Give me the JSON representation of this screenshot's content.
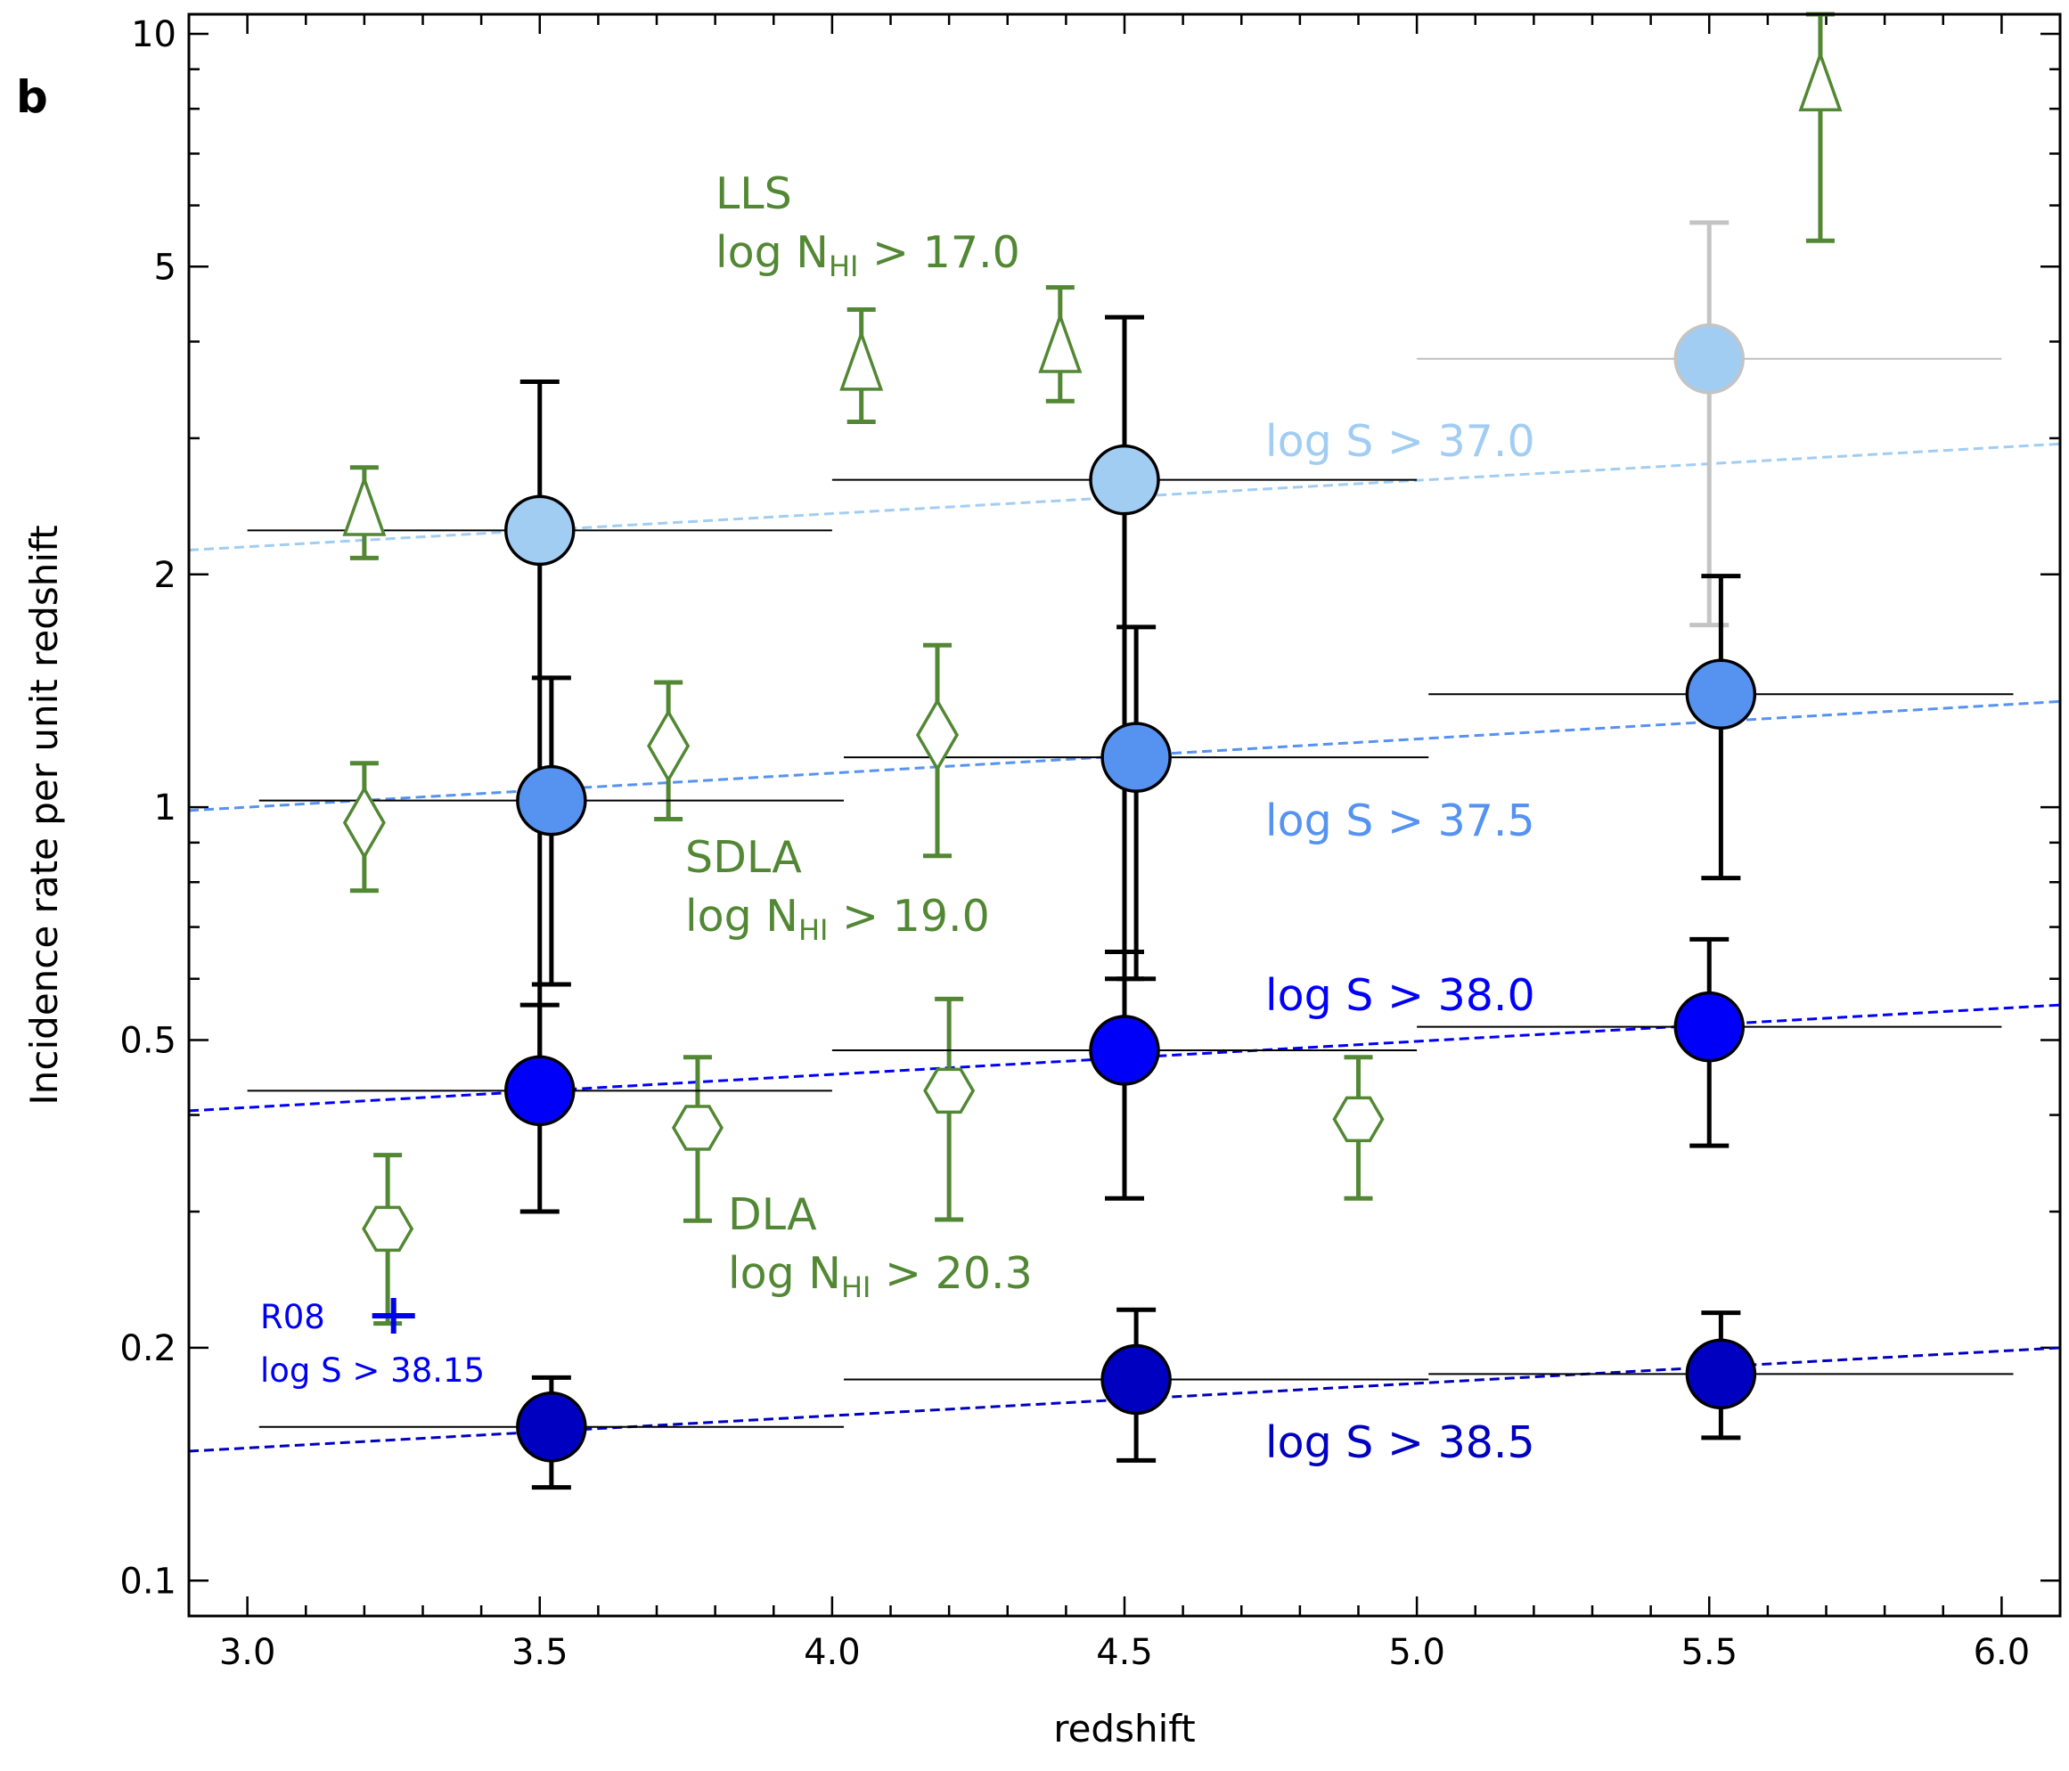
{
  "chart_data": {
    "type": "scatter",
    "panel_label": "b",
    "xlabel": "redshift",
    "ylabel": "Incidence rate per unit redshift",
    "xlim": [
      2.9,
      6.1
    ],
    "ylim": [
      0.09,
      10.6
    ],
    "yscale": "log",
    "x_ticks": [
      {
        "value": 3.0,
        "label": "3.0"
      },
      {
        "value": 3.5,
        "label": "3.5"
      },
      {
        "value": 4.0,
        "label": "4.0"
      },
      {
        "value": 4.5,
        "label": "4.5"
      },
      {
        "value": 5.0,
        "label": "5.0"
      },
      {
        "value": 5.5,
        "label": "5.5"
      },
      {
        "value": 6.0,
        "label": "6.0"
      }
    ],
    "y_ticks": [
      {
        "value": 0.1,
        "label": "0.1"
      },
      {
        "value": 0.2,
        "label": "0.2"
      },
      {
        "value": 0.5,
        "label": "0.5"
      },
      {
        "value": 1,
        "label": "1"
      },
      {
        "value": 2,
        "label": "2"
      },
      {
        "value": 5,
        "label": "5"
      },
      {
        "value": 10,
        "label": "10"
      }
    ],
    "series": [
      {
        "name": "log S > 37.0",
        "color": "#a2cdf3",
        "edge": "#000000",
        "label_text": "log S > 37.0",
        "fit": {
          "x": [
            2.9,
            6.1
          ],
          "y": [
            2.15,
            2.95
          ]
        },
        "points": [
          {
            "x": 3.5,
            "y": 2.28,
            "xerr": [
              3.0,
              4.0
            ],
            "ylo": 0.45,
            "yhi": 3.55,
            "errcolor": "#000000",
            "xerrcolor": "#000000"
          },
          {
            "x": 4.5,
            "y": 2.65,
            "xerr": [
              4.0,
              5.0
            ],
            "ylo": 0.6,
            "yhi": 4.3,
            "errcolor": "#000000",
            "xerrcolor": "#000000"
          },
          {
            "x": 5.5,
            "y": 3.8,
            "xerr": [
              5.0,
              6.0
            ],
            "ylo": 1.72,
            "yhi": 5.7,
            "errcolor": "#c4c4c4",
            "xerrcolor": "#bfbfbf",
            "edge": "#c4c4c4"
          }
        ]
      },
      {
        "name": "log S > 37.5",
        "color": "#5693f0",
        "edge": "#000000",
        "label_text": "log S > 37.5",
        "fit": {
          "x": [
            2.9,
            6.1
          ],
          "y": [
            0.99,
            1.37
          ]
        },
        "points": [
          {
            "x": 3.52,
            "y": 1.02,
            "xerr": [
              3.02,
              4.02
            ],
            "ylo": 0.59,
            "yhi": 1.47,
            "errcolor": "#000000",
            "xerrcolor": "#000000"
          },
          {
            "x": 4.52,
            "y": 1.16,
            "xerr": [
              4.02,
              5.02
            ],
            "ylo": 0.6,
            "yhi": 1.71,
            "errcolor": "#000000",
            "xerrcolor": "#000000"
          },
          {
            "x": 5.52,
            "y": 1.4,
            "xerr": [
              5.02,
              6.02
            ],
            "ylo": 0.81,
            "yhi": 1.99,
            "errcolor": "#000000",
            "xerrcolor": "#000000"
          }
        ]
      },
      {
        "name": "log S > 38.0",
        "color": "#0000fa",
        "edge": "#000000",
        "label_text": "log S > 38.0",
        "fit": {
          "x": [
            2.9,
            6.1
          ],
          "y": [
            0.405,
            0.555
          ]
        },
        "points": [
          {
            "x": 3.5,
            "y": 0.43,
            "xerr": [
              3.0,
              4.0
            ],
            "ylo": 0.3,
            "yhi": 0.555,
            "errcolor": "#000000",
            "xerrcolor": "#000000"
          },
          {
            "x": 4.5,
            "y": 0.485,
            "xerr": [
              4.0,
              5.0
            ],
            "ylo": 0.312,
            "yhi": 0.65,
            "errcolor": "#000000",
            "xerrcolor": "#000000"
          },
          {
            "x": 5.5,
            "y": 0.52,
            "xerr": [
              5.0,
              6.0
            ],
            "ylo": 0.365,
            "yhi": 0.675,
            "errcolor": "#000000",
            "xerrcolor": "#000000"
          }
        ]
      },
      {
        "name": "log S > 38.5",
        "color": "#0000c0",
        "edge": "#000000",
        "label_text": "log S > 38.5",
        "fit": {
          "x": [
            2.9,
            6.1
          ],
          "y": [
            0.147,
            0.2
          ]
        },
        "points": [
          {
            "x": 3.52,
            "y": 0.158,
            "xerr": [
              3.02,
              4.02
            ],
            "ylo": 0.132,
            "yhi": 0.183,
            "errcolor": "#000000",
            "xerrcolor": "#000000"
          },
          {
            "x": 4.52,
            "y": 0.182,
            "xerr": [
              4.02,
              5.02
            ],
            "ylo": 0.143,
            "yhi": 0.224,
            "errcolor": "#000000",
            "xerrcolor": "#000000"
          },
          {
            "x": 5.52,
            "y": 0.185,
            "xerr": [
              5.02,
              6.02
            ],
            "ylo": 0.153,
            "yhi": 0.222,
            "errcolor": "#000000",
            "xerrcolor": "#000000"
          }
        ]
      }
    ],
    "absorber_series": [
      {
        "name": "LLS",
        "marker": "triangle",
        "color": "#528734",
        "label_line1": "LLS",
        "label_line2_prefix": "log N",
        "label_sub": "HI",
        "label_line2_suffix": " > 17.0",
        "points": [
          {
            "x": 3.2,
            "y": 2.4,
            "ylo": 2.1,
            "yhi": 2.75
          },
          {
            "x": 4.05,
            "y": 3.7,
            "ylo": 3.15,
            "yhi": 4.4
          },
          {
            "x": 4.39,
            "y": 3.9,
            "ylo": 3.35,
            "yhi": 4.7
          },
          {
            "x": 5.69,
            "y": 8.5,
            "ylo": 5.4,
            "yhi": 10.6
          }
        ]
      },
      {
        "name": "SDLA",
        "marker": "diamond",
        "color": "#528734",
        "label_line1": "SDLA",
        "label_line2_prefix": "log N",
        "label_sub": "HI",
        "label_line2_suffix": " > 19.0",
        "points": [
          {
            "x": 3.2,
            "y": 0.955,
            "ylo": 0.78,
            "yhi": 1.14
          },
          {
            "x": 3.72,
            "y": 1.2,
            "ylo": 0.965,
            "yhi": 1.45
          },
          {
            "x": 4.18,
            "y": 1.24,
            "ylo": 0.865,
            "yhi": 1.62
          }
        ]
      },
      {
        "name": "DLA",
        "marker": "hexagon",
        "color": "#528734",
        "label_line1": "DLA",
        "label_line2_prefix": "log N",
        "label_sub": "HI",
        "label_line2_suffix": " > 20.3",
        "points": [
          {
            "x": 3.24,
            "y": 0.285,
            "ylo": 0.215,
            "yhi": 0.355
          },
          {
            "x": 3.77,
            "y": 0.385,
            "ylo": 0.292,
            "yhi": 0.475
          },
          {
            "x": 4.2,
            "y": 0.43,
            "ylo": 0.293,
            "yhi": 0.565
          },
          {
            "x": 4.9,
            "y": 0.395,
            "ylo": 0.312,
            "yhi": 0.475
          }
        ]
      }
    ],
    "reference_point": {
      "name": "R08",
      "label": "R08",
      "sublabel": "log S > 38.15",
      "x": 3.25,
      "y": 0.22,
      "color": "#0000f0"
    }
  }
}
